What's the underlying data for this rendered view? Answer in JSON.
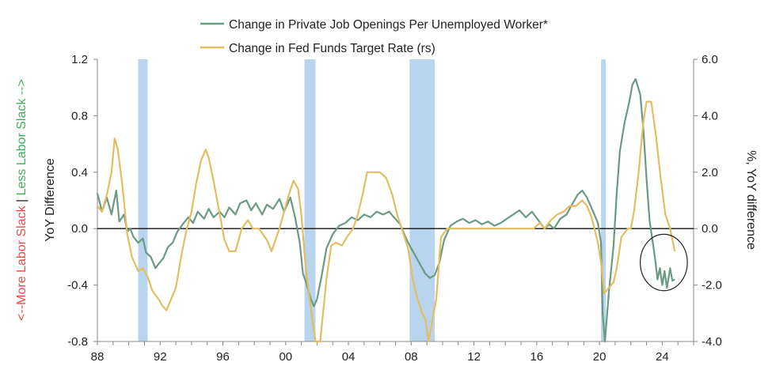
{
  "chart_data": {
    "type": "line",
    "legend": {
      "placement": "top-center",
      "entries": [
        {
          "label": "Change in Private Job Openings Per Unemployed Worker*",
          "color": "#6b9a83"
        },
        {
          "label": "Change in Fed Funds Target Rate (rs)",
          "color": "#e3bd61"
        }
      ]
    },
    "xlim": [
      1988,
      2026
    ],
    "x_tick_labels": [
      "88",
      "92",
      "96",
      "00",
      "04",
      "08",
      "12",
      "16",
      "20",
      "24"
    ],
    "left_axis": {
      "ylim": [
        -0.8,
        1.2
      ],
      "tick_labels": [
        "1.2",
        "0.8",
        "0.4",
        "0.0",
        "-0.4",
        "-0.8"
      ],
      "title": "YoY Difference",
      "side_title_parts": [
        {
          "text": "<--More Labor Slack",
          "color": "#e84a4a"
        },
        {
          "text": " | ",
          "color": "#222222"
        },
        {
          "text": "Less Labor Slack -->",
          "color": "#3fae5a"
        }
      ]
    },
    "right_axis": {
      "ylim": [
        -4.0,
        6.0
      ],
      "tick_labels": [
        "6.0",
        "4.0",
        "2.0",
        "0.0",
        "-2.0",
        "-4.0"
      ],
      "title": "%, YoY difference"
    },
    "recessions": [
      [
        1990.6,
        1991.2
      ],
      [
        2001.2,
        2001.9
      ],
      [
        2007.9,
        2009.5
      ],
      [
        2020.1,
        2020.4
      ]
    ],
    "annotation": {
      "type": "circle",
      "center": [
        2024.1,
        -0.24
      ],
      "radius_years": 1.5,
      "radius_y": 0.2
    },
    "series": [
      {
        "name": "Change in Private Job Openings Per Unemployed Worker*",
        "axis": "left",
        "color": "#6b9a83",
        "points": [
          [
            1988.0,
            0.25
          ],
          [
            1988.3,
            0.12
          ],
          [
            1988.6,
            0.22
          ],
          [
            1988.9,
            0.1
          ],
          [
            1989.2,
            0.27
          ],
          [
            1989.4,
            0.05
          ],
          [
            1989.7,
            0.1
          ],
          [
            1989.9,
            -0.02
          ],
          [
            1990.1,
            0.0
          ],
          [
            1990.3,
            -0.06
          ],
          [
            1990.6,
            -0.1
          ],
          [
            1990.9,
            -0.07
          ],
          [
            1991.1,
            -0.17
          ],
          [
            1991.4,
            -0.2
          ],
          [
            1991.7,
            -0.28
          ],
          [
            1991.9,
            -0.25
          ],
          [
            1992.2,
            -0.21
          ],
          [
            1992.5,
            -0.13
          ],
          [
            1992.8,
            -0.1
          ],
          [
            1993.1,
            -0.02
          ],
          [
            1993.5,
            0.04
          ],
          [
            1993.8,
            0.08
          ],
          [
            1994.1,
            0.04
          ],
          [
            1994.4,
            0.12
          ],
          [
            1994.8,
            0.07
          ],
          [
            1995.1,
            0.14
          ],
          [
            1995.4,
            0.08
          ],
          [
            1995.8,
            0.12
          ],
          [
            1996.1,
            0.08
          ],
          [
            1996.4,
            0.15
          ],
          [
            1996.8,
            0.1
          ],
          [
            1997.1,
            0.18
          ],
          [
            1997.5,
            0.2
          ],
          [
            1997.8,
            0.13
          ],
          [
            1998.1,
            0.18
          ],
          [
            1998.5,
            0.1
          ],
          [
            1998.8,
            0.17
          ],
          [
            1999.2,
            0.14
          ],
          [
            1999.6,
            0.21
          ],
          [
            1999.9,
            0.12
          ],
          [
            2000.3,
            0.22
          ],
          [
            2000.6,
            0.08
          ],
          [
            2000.9,
            -0.1
          ],
          [
            2001.1,
            -0.32
          ],
          [
            2001.3,
            -0.38
          ],
          [
            2001.6,
            -0.5
          ],
          [
            2001.8,
            -0.55
          ],
          [
            2002.0,
            -0.5
          ],
          [
            2002.3,
            -0.33
          ],
          [
            2002.6,
            -0.14
          ],
          [
            2003.0,
            -0.04
          ],
          [
            2003.4,
            0.02
          ],
          [
            2003.8,
            0.04
          ],
          [
            2004.2,
            0.08
          ],
          [
            2004.6,
            0.06
          ],
          [
            2005.0,
            0.1
          ],
          [
            2005.4,
            0.08
          ],
          [
            2005.8,
            0.12
          ],
          [
            2006.2,
            0.1
          ],
          [
            2006.6,
            0.12
          ],
          [
            2006.9,
            0.08
          ],
          [
            2007.3,
            0.03
          ],
          [
            2007.6,
            -0.05
          ],
          [
            2007.9,
            -0.12
          ],
          [
            2008.2,
            -0.18
          ],
          [
            2008.6,
            -0.26
          ],
          [
            2008.9,
            -0.32
          ],
          [
            2009.2,
            -0.35
          ],
          [
            2009.5,
            -0.33
          ],
          [
            2009.8,
            -0.24
          ],
          [
            2010.1,
            -0.08
          ],
          [
            2010.5,
            0.02
          ],
          [
            2010.9,
            0.05
          ],
          [
            2011.3,
            0.07
          ],
          [
            2011.7,
            0.04
          ],
          [
            2012.1,
            0.06
          ],
          [
            2012.5,
            0.03
          ],
          [
            2012.9,
            0.05
          ],
          [
            2013.3,
            0.02
          ],
          [
            2013.7,
            0.04
          ],
          [
            2014.1,
            0.07
          ],
          [
            2014.5,
            0.1
          ],
          [
            2014.9,
            0.13
          ],
          [
            2015.3,
            0.08
          ],
          [
            2015.7,
            0.12
          ],
          [
            2016.1,
            0.06
          ],
          [
            2016.5,
            0.0
          ],
          [
            2016.8,
            0.03
          ],
          [
            2017.1,
            0.0
          ],
          [
            2017.5,
            0.07
          ],
          [
            2017.9,
            0.1
          ],
          [
            2018.2,
            0.16
          ],
          [
            2018.6,
            0.24
          ],
          [
            2018.9,
            0.27
          ],
          [
            2019.2,
            0.22
          ],
          [
            2019.6,
            0.12
          ],
          [
            2019.9,
            0.04
          ],
          [
            2020.1,
            -0.1
          ],
          [
            2020.2,
            -0.6
          ],
          [
            2020.35,
            -0.8
          ],
          [
            2020.6,
            -0.45
          ],
          [
            2020.9,
            -0.12
          ],
          [
            2021.1,
            0.25
          ],
          [
            2021.3,
            0.55
          ],
          [
            2021.6,
            0.75
          ],
          [
            2021.9,
            0.9
          ],
          [
            2022.1,
            1.02
          ],
          [
            2022.3,
            1.06
          ],
          [
            2022.6,
            0.95
          ],
          [
            2022.8,
            0.7
          ],
          [
            2023.0,
            0.35
          ],
          [
            2023.2,
            0.05
          ],
          [
            2023.4,
            -0.1
          ],
          [
            2023.55,
            -0.22
          ],
          [
            2023.7,
            -0.36
          ],
          [
            2023.85,
            -0.28
          ],
          [
            2024.0,
            -0.4
          ],
          [
            2024.15,
            -0.3
          ],
          [
            2024.3,
            -0.42
          ],
          [
            2024.5,
            -0.28
          ],
          [
            2024.65,
            -0.37
          ],
          [
            2024.8,
            -0.36
          ]
        ]
      },
      {
        "name": "Change in Fed Funds Target Rate (rs)",
        "axis": "right",
        "color": "#e3bd61",
        "points": [
          [
            1988.0,
            0.8
          ],
          [
            1988.3,
            0.6
          ],
          [
            1988.6,
            1.2
          ],
          [
            1988.9,
            2.0
          ],
          [
            1989.1,
            3.2
          ],
          [
            1989.3,
            2.8
          ],
          [
            1989.6,
            1.5
          ],
          [
            1989.9,
            -0.2
          ],
          [
            1990.2,
            -1.0
          ],
          [
            1990.6,
            -1.5
          ],
          [
            1990.9,
            -1.4
          ],
          [
            1991.2,
            -1.7
          ],
          [
            1991.5,
            -2.2
          ],
          [
            1991.9,
            -2.5
          ],
          [
            1992.1,
            -2.7
          ],
          [
            1992.4,
            -2.9
          ],
          [
            1992.7,
            -2.5
          ],
          [
            1993.0,
            -2.1
          ],
          [
            1993.4,
            -0.8
          ],
          [
            1993.7,
            0.0
          ],
          [
            1994.0,
            0.6
          ],
          [
            1994.3,
            1.6
          ],
          [
            1994.6,
            2.4
          ],
          [
            1994.9,
            2.8
          ],
          [
            1995.1,
            2.5
          ],
          [
            1995.4,
            1.7
          ],
          [
            1995.8,
            0.5
          ],
          [
            1996.1,
            -0.4
          ],
          [
            1996.4,
            -0.8
          ],
          [
            1996.8,
            -0.8
          ],
          [
            1997.2,
            0.0
          ],
          [
            1997.6,
            0.3
          ],
          [
            1997.9,
            0.0
          ],
          [
            1998.3,
            0.0
          ],
          [
            1998.8,
            -0.4
          ],
          [
            1999.1,
            -0.8
          ],
          [
            1999.6,
            0.0
          ],
          [
            1999.9,
            0.6
          ],
          [
            2000.2,
            1.2
          ],
          [
            2000.5,
            1.7
          ],
          [
            2000.8,
            1.4
          ],
          [
            2001.0,
            0.5
          ],
          [
            2001.3,
            -1.5
          ],
          [
            2001.6,
            -2.8
          ],
          [
            2001.9,
            -4.0
          ],
          [
            2002.2,
            -4.0
          ],
          [
            2002.6,
            -1.8
          ],
          [
            2002.9,
            -0.6
          ],
          [
            2003.2,
            -0.5
          ],
          [
            2003.6,
            -0.6
          ],
          [
            2003.9,
            -0.3
          ],
          [
            2004.3,
            0.0
          ],
          [
            2004.6,
            0.5
          ],
          [
            2004.9,
            1.2
          ],
          [
            2005.2,
            2.0
          ],
          [
            2005.6,
            2.0
          ],
          [
            2006.0,
            2.0
          ],
          [
            2006.4,
            1.8
          ],
          [
            2006.8,
            1.2
          ],
          [
            2007.1,
            0.5
          ],
          [
            2007.4,
            0.0
          ],
          [
            2007.8,
            -0.7
          ],
          [
            2008.1,
            -1.8
          ],
          [
            2008.4,
            -2.5
          ],
          [
            2008.7,
            -3.0
          ],
          [
            2008.9,
            -3.2
          ],
          [
            2009.1,
            -4.0
          ],
          [
            2009.3,
            -3.4
          ],
          [
            2009.6,
            -2.5
          ],
          [
            2009.9,
            -0.3
          ],
          [
            2010.3,
            0.0
          ],
          [
            2012.0,
            0.0
          ],
          [
            2014.0,
            0.0
          ],
          [
            2015.8,
            0.0
          ],
          [
            2016.2,
            0.2
          ],
          [
            2016.5,
            0.0
          ],
          [
            2016.9,
            0.3
          ],
          [
            2017.3,
            0.5
          ],
          [
            2017.7,
            0.6
          ],
          [
            2018.1,
            0.8
          ],
          [
            2018.5,
            0.8
          ],
          [
            2018.9,
            1.0
          ],
          [
            2019.2,
            0.8
          ],
          [
            2019.5,
            0.4
          ],
          [
            2019.9,
            -0.5
          ],
          [
            2020.1,
            -1.2
          ],
          [
            2020.3,
            -2.3
          ],
          [
            2020.6,
            -2.1
          ],
          [
            2020.9,
            -1.9
          ],
          [
            2021.1,
            -1.4
          ],
          [
            2021.4,
            -0.3
          ],
          [
            2021.8,
            0.0
          ],
          [
            2022.0,
            0.0
          ],
          [
            2022.2,
            0.6
          ],
          [
            2022.5,
            2.0
          ],
          [
            2022.8,
            3.8
          ],
          [
            2023.0,
            4.5
          ],
          [
            2023.3,
            4.5
          ],
          [
            2023.6,
            3.3
          ],
          [
            2023.9,
            1.8
          ],
          [
            2024.2,
            0.5
          ],
          [
            2024.5,
            0.0
          ],
          [
            2024.8,
            -0.8
          ]
        ]
      }
    ]
  }
}
